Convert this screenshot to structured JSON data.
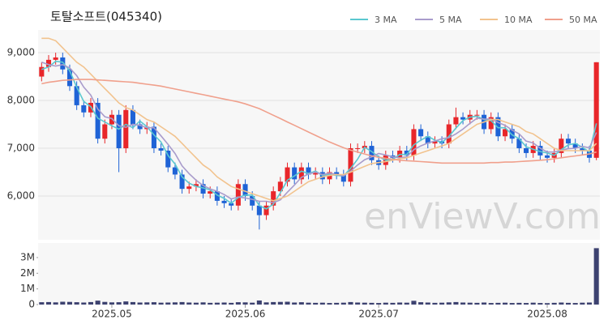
{
  "chart_data": {
    "type": "candlestick",
    "title": "토탈소프트(045340)",
    "watermark": "enViewV.com",
    "up_color": "#e8262a",
    "down_color": "#1f63d6",
    "grid": true,
    "categories": [
      null,
      null,
      null,
      null,
      null,
      null,
      null,
      null,
      null,
      null,
      "2025.05",
      null,
      null,
      null,
      null,
      null,
      null,
      null,
      null,
      null,
      null,
      null,
      null,
      null,
      null,
      null,
      null,
      null,
      null,
      "2025.06",
      null,
      null,
      null,
      null,
      null,
      null,
      null,
      null,
      null,
      null,
      null,
      null,
      null,
      null,
      null,
      null,
      null,
      null,
      "2025.07",
      null,
      null,
      null,
      null,
      null,
      null,
      null,
      null,
      null,
      null,
      null,
      null,
      null,
      null,
      null,
      null,
      null,
      null,
      null,
      null,
      null,
      null,
      null,
      "2025.08",
      null,
      null,
      null,
      null,
      null,
      null,
      null
    ],
    "open": [
      8500,
      8700,
      8850,
      8900,
      8650,
      8300,
      7900,
      7750,
      7950,
      7200,
      7500,
      7700,
      7000,
      7800,
      7500,
      7400,
      7450,
      7000,
      6950,
      6600,
      6450,
      6150,
      6200,
      6250,
      6050,
      6100,
      5900,
      5850,
      5800,
      6250,
      6000,
      5800,
      5600,
      5800,
      6100,
      6300,
      6600,
      6350,
      6600,
      6450,
      6500,
      6350,
      6500,
      6450,
      6300,
      7000,
      7000,
      7050,
      6750,
      6650,
      6850,
      6800,
      6950,
      6850,
      7400,
      7250,
      7100,
      7150,
      7100,
      7500,
      7650,
      7600,
      7700,
      7700,
      7400,
      7650,
      7250,
      7400,
      7200,
      7000,
      6900,
      7050,
      6850,
      6800,
      6900,
      7200,
      7100,
      7000,
      6950,
      6800
    ],
    "high": [
      8800,
      8950,
      9000,
      9000,
      8750,
      8400,
      8000,
      8050,
      8050,
      7600,
      7800,
      7800,
      7900,
      7900,
      7600,
      7550,
      7550,
      7100,
      7050,
      6700,
      6550,
      6300,
      6350,
      6350,
      6200,
      6200,
      6000,
      5950,
      6350,
      6350,
      6100,
      5900,
      5900,
      6200,
      6400,
      6700,
      6700,
      6700,
      6700,
      6600,
      6600,
      6600,
      6600,
      6550,
      7100,
      7100,
      7150,
      7150,
      6850,
      6950,
      6950,
      7050,
      7050,
      7500,
      7500,
      7350,
      7250,
      7250,
      7600,
      7850,
      7750,
      7800,
      7800,
      7800,
      7750,
      7750,
      7500,
      7500,
      7300,
      7100,
      7150,
      7150,
      6950,
      7000,
      7300,
      7300,
      7200,
      7100,
      7050,
      8800
    ],
    "low": [
      8400,
      8600,
      8750,
      8550,
      8200,
      7800,
      7650,
      7650,
      7100,
      7100,
      7400,
      6500,
      6900,
      7400,
      7300,
      7300,
      6900,
      6850,
      6500,
      6350,
      6050,
      6050,
      6100,
      5950,
      5950,
      5800,
      5750,
      5700,
      5700,
      5900,
      5700,
      5300,
      5500,
      5700,
      6000,
      6200,
      6250,
      6250,
      6350,
      6350,
      6250,
      6250,
      6350,
      6200,
      6200,
      6900,
      6900,
      6650,
      6550,
      6550,
      6700,
      6700,
      6750,
      6750,
      7150,
      7000,
      7000,
      7000,
      7000,
      7400,
      7500,
      7500,
      7600,
      7300,
      7300,
      7150,
      7150,
      7100,
      6900,
      6800,
      6800,
      6750,
      6700,
      6700,
      6800,
      7000,
      6900,
      6850,
      6700,
      6750
    ],
    "close": [
      8700,
      8850,
      8900,
      8650,
      8300,
      7900,
      7750,
      7950,
      7200,
      7500,
      7700,
      7000,
      7800,
      7500,
      7400,
      7450,
      7000,
      6950,
      6600,
      6450,
      6150,
      6200,
      6250,
      6050,
      6100,
      5900,
      5850,
      5800,
      6250,
      6000,
      5800,
      5600,
      5800,
      6100,
      6300,
      6600,
      6350,
      6600,
      6450,
      6500,
      6350,
      6500,
      6450,
      6300,
      7000,
      7000,
      7050,
      6750,
      6650,
      6850,
      6800,
      6950,
      6850,
      7400,
      7250,
      7100,
      7150,
      7100,
      7500,
      7650,
      7600,
      7700,
      7700,
      7400,
      7650,
      7250,
      7400,
      7200,
      7000,
      6900,
      7050,
      6850,
      6800,
      6900,
      7200,
      7100,
      7000,
      6950,
      6800,
      8800
    ],
    "series": [
      {
        "name": "3 MA",
        "color": "#5bc8d0",
        "values": [
          8650,
          8700,
          8820,
          8800,
          8620,
          8280,
          7980,
          7870,
          7630,
          7550,
          7470,
          7400,
          7500,
          7430,
          7570,
          7450,
          7280,
          7130,
          6850,
          6670,
          6400,
          6270,
          6200,
          6170,
          6130,
          6020,
          5950,
          5850,
          5970,
          6020,
          6020,
          5800,
          5730,
          5830,
          6070,
          6330,
          6420,
          6520,
          6470,
          6520,
          6430,
          6450,
          6430,
          6420,
          6580,
          6770,
          7020,
          6930,
          6820,
          6750,
          6770,
          6870,
          6870,
          7070,
          7170,
          7250,
          7170,
          7120,
          7250,
          7420,
          7580,
          7650,
          7670,
          7600,
          7580,
          7430,
          7430,
          7280,
          7200,
          7030,
          6980,
          6930,
          6900,
          6850,
          6970,
          7070,
          7100,
          7020,
          6920,
          7520
        ]
      },
      {
        "name": "5 MA",
        "color": "#a99ccc",
        "values": [
          8800,
          8750,
          8720,
          8750,
          8680,
          8520,
          8280,
          8110,
          7820,
          7660,
          7620,
          7470,
          7440,
          7500,
          7480,
          7430,
          7430,
          7260,
          7080,
          6890,
          6630,
          6470,
          6330,
          6220,
          6150,
          6100,
          6030,
          5940,
          5980,
          5960,
          5930,
          5890,
          5890,
          5860,
          5920,
          6080,
          6230,
          6390,
          6460,
          6500,
          6450,
          6480,
          6450,
          6420,
          6520,
          6650,
          6760,
          6820,
          6890,
          6860,
          6820,
          6800,
          6820,
          6970,
          7050,
          7110,
          7150,
          7200,
          7220,
          7300,
          7400,
          7520,
          7630,
          7610,
          7610,
          7540,
          7480,
          7380,
          7300,
          7150,
          7110,
          7000,
          6920,
          6920,
          6960,
          6990,
          7000,
          7040,
          7010,
          7330
        ]
      },
      {
        "name": "10 MA",
        "color": "#f2c38e",
        "values": [
          9300,
          9300,
          9250,
          9100,
          8950,
          8800,
          8700,
          8550,
          8400,
          8250,
          8100,
          7950,
          7850,
          7800,
          7700,
          7600,
          7550,
          7450,
          7350,
          7250,
          7100,
          6950,
          6800,
          6650,
          6550,
          6400,
          6300,
          6200,
          6150,
          6100,
          6050,
          6000,
          5950,
          5900,
          5950,
          6000,
          6100,
          6200,
          6300,
          6350,
          6400,
          6430,
          6450,
          6450,
          6500,
          6560,
          6620,
          6680,
          6700,
          6720,
          6750,
          6780,
          6800,
          6850,
          6900,
          6950,
          7000,
          7050,
          7100,
          7200,
          7300,
          7400,
          7500,
          7550,
          7600,
          7600,
          7550,
          7500,
          7450,
          7350,
          7300,
          7200,
          7100,
          7000,
          6950,
          6950,
          6950,
          6950,
          6950,
          7100
        ]
      },
      {
        "name": "50 MA",
        "color": "#f0a08c",
        "values": [
          8350,
          8380,
          8400,
          8420,
          8430,
          8440,
          8440,
          8440,
          8430,
          8420,
          8410,
          8400,
          8390,
          8380,
          8360,
          8340,
          8320,
          8300,
          8270,
          8240,
          8210,
          8180,
          8150,
          8120,
          8090,
          8060,
          8030,
          8000,
          7970,
          7930,
          7880,
          7830,
          7760,
          7690,
          7620,
          7550,
          7480,
          7410,
          7340,
          7270,
          7200,
          7130,
          7070,
          7010,
          6960,
          6920,
          6880,
          6840,
          6810,
          6790,
          6770,
          6750,
          6740,
          6730,
          6720,
          6710,
          6700,
          6690,
          6690,
          6690,
          6690,
          6690,
          6690,
          6690,
          6700,
          6700,
          6710,
          6710,
          6720,
          6730,
          6740,
          6750,
          6760,
          6780,
          6800,
          6820,
          6840,
          6860,
          6880,
          6920
        ]
      }
    ],
    "ylim": [
      5085,
      9475
    ],
    "yticks": [
      {
        "value": 6000,
        "label": "6,000"
      },
      {
        "value": 7000,
        "label": "7,000"
      },
      {
        "value": 8000,
        "label": "8,000"
      },
      {
        "value": 9000,
        "label": "9,000"
      }
    ],
    "volume": {
      "color": "#3d4270",
      "values": [
        150000,
        160000,
        140000,
        180000,
        170000,
        150000,
        130000,
        160000,
        250000,
        170000,
        140000,
        150000,
        200000,
        160000,
        130000,
        140000,
        150000,
        120000,
        130000,
        140000,
        160000,
        130000,
        120000,
        140000,
        110000,
        120000,
        130000,
        110000,
        150000,
        140000,
        120000,
        260000,
        140000,
        160000,
        170000,
        180000,
        130000,
        150000,
        120000,
        110000,
        120000,
        100000,
        110000,
        120000,
        160000,
        130000,
        120000,
        110000,
        100000,
        120000,
        110000,
        130000,
        120000,
        240000,
        150000,
        130000,
        110000,
        120000,
        140000,
        160000,
        130000,
        120000,
        110000,
        130000,
        100000,
        110000,
        120000,
        100000,
        110000,
        100000,
        120000,
        100000,
        90000,
        110000,
        130000,
        110000,
        100000,
        120000,
        130000,
        3600000
      ],
      "ylim": [
        0,
        3930000
      ],
      "yticks": [
        0,
        {
          "value": 1000000,
          "label": "1M"
        },
        {
          "value": 2000000,
          "label": "2M"
        },
        {
          "value": 3000000,
          "label": "3M"
        }
      ]
    }
  }
}
